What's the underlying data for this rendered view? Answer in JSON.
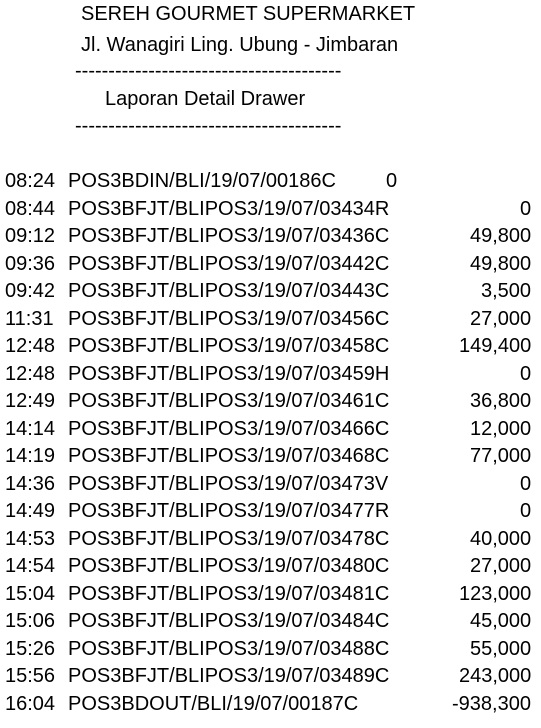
{
  "header": {
    "store_name": "SEREH GOURMET SUPERMARKET",
    "address": "Jl. Wanagiri Ling. Ubung - Jimbaran",
    "separator_top": "----------------------------------------",
    "report_title": "Laporan Detail Drawer",
    "separator_bottom": "----------------------------------------"
  },
  "entries": [
    {
      "time": "08:24",
      "ref": "POS3BDIN/BLI/19/07/00186C",
      "amount": "0"
    },
    {
      "time": "08:44",
      "ref": "POS3BFJT/BLIPOS3/19/07/03434R",
      "amount": "0"
    },
    {
      "time": "09:12",
      "ref": "POS3BFJT/BLIPOS3/19/07/03436C",
      "amount": "49,800"
    },
    {
      "time": "09:36",
      "ref": "POS3BFJT/BLIPOS3/19/07/03442C",
      "amount": "49,800"
    },
    {
      "time": "09:42",
      "ref": "POS3BFJT/BLIPOS3/19/07/03443C",
      "amount": "3,500"
    },
    {
      "time": "11:31",
      "ref": "POS3BFJT/BLIPOS3/19/07/03456C",
      "amount": "27,000"
    },
    {
      "time": "12:48",
      "ref": "POS3BFJT/BLIPOS3/19/07/03458C",
      "amount": "149,400"
    },
    {
      "time": "12:48",
      "ref": "POS3BFJT/BLIPOS3/19/07/03459H",
      "amount": "0"
    },
    {
      "time": "12:49",
      "ref": "POS3BFJT/BLIPOS3/19/07/03461C",
      "amount": "36,800"
    },
    {
      "time": "14:14",
      "ref": "POS3BFJT/BLIPOS3/19/07/03466C",
      "amount": "12,000"
    },
    {
      "time": "14:19",
      "ref": "POS3BFJT/BLIPOS3/19/07/03468C",
      "amount": "77,000"
    },
    {
      "time": "14:36",
      "ref": "POS3BFJT/BLIPOS3/19/07/03473V",
      "amount": "0"
    },
    {
      "time": "14:49",
      "ref": "POS3BFJT/BLIPOS3/19/07/03477R",
      "amount": "0"
    },
    {
      "time": "14:53",
      "ref": "POS3BFJT/BLIPOS3/19/07/03478C",
      "amount": "40,000"
    },
    {
      "time": "14:54",
      "ref": "POS3BFJT/BLIPOS3/19/07/03480C",
      "amount": "27,000"
    },
    {
      "time": "15:04",
      "ref": "POS3BFJT/BLIPOS3/19/07/03481C",
      "amount": "123,000"
    },
    {
      "time": "15:06",
      "ref": "POS3BFJT/BLIPOS3/19/07/03484C",
      "amount": "45,000"
    },
    {
      "time": "15:26",
      "ref": "POS3BFJT/BLIPOS3/19/07/03488C",
      "amount": "55,000"
    },
    {
      "time": "15:56",
      "ref": "POS3BFJT/BLIPOS3/19/07/03489C",
      "amount": "243,000"
    },
    {
      "time": "16:04",
      "ref": "POS3BDOUT/BLI/19/07/00187C",
      "amount": "-938,300"
    }
  ]
}
